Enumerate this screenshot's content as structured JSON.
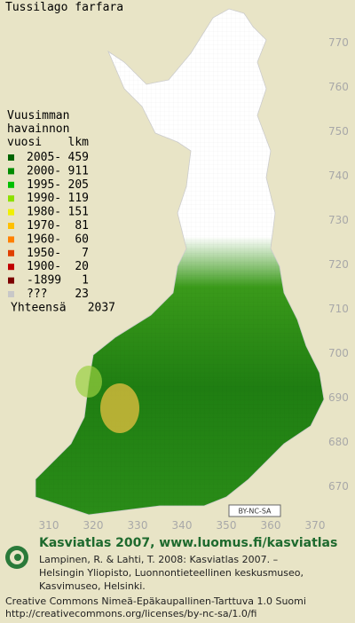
{
  "title": "Tussilago farfara",
  "legend": {
    "header": [
      "Vuusimman",
      "havainnon",
      "vuosi"
    ],
    "count_header": "lkm",
    "items": [
      {
        "label": "2005-",
        "count": 459,
        "color": "#006400"
      },
      {
        "label": "2000-",
        "count": 911,
        "color": "#008c00"
      },
      {
        "label": "1995-",
        "count": 205,
        "color": "#00c000"
      },
      {
        "label": "1990-",
        "count": 119,
        "color": "#8ce000"
      },
      {
        "label": "1980-",
        "count": 151,
        "color": "#f0f000"
      },
      {
        "label": "1970-",
        "count": 81,
        "color": "#ffc000"
      },
      {
        "label": "1960-",
        "count": 60,
        "color": "#ff8000"
      },
      {
        "label": "1950-",
        "count": 7,
        "color": "#e04000"
      },
      {
        "label": "1900-",
        "count": 20,
        "color": "#c00000"
      },
      {
        "label": "-1899",
        "count": 1,
        "color": "#7c0000"
      },
      {
        "label": "???",
        "count": 23,
        "color": "#c8c8c8"
      }
    ],
    "total_label": "Yhteensä",
    "total": 2037
  },
  "grid_axes": {
    "yticks": [
      770,
      760,
      750,
      740,
      730,
      720,
      710,
      700,
      690,
      680,
      670
    ],
    "xticks": [
      310,
      320,
      330,
      340,
      350,
      360,
      370
    ]
  },
  "license_badge": "BY-NC-SA",
  "footer": {
    "brand": "Kasviatlas 2007, www.luomus.fi/kasviatlas",
    "citation": [
      "Lampinen, R. & Lahti, T. 2008: Kasviatlas 2007. –",
      "Helsingin Yliopisto, Luonnontieteellinen keskusmuseo,",
      "Kasvimuseo, Helsinki."
    ],
    "license": [
      "Creative Commons Nimeä-Epäkaupallinen-Tarttuva 1.0 Suomi",
      "http://creativecommons.org/licenses/by-nc-sa/1.0/fi"
    ]
  }
}
